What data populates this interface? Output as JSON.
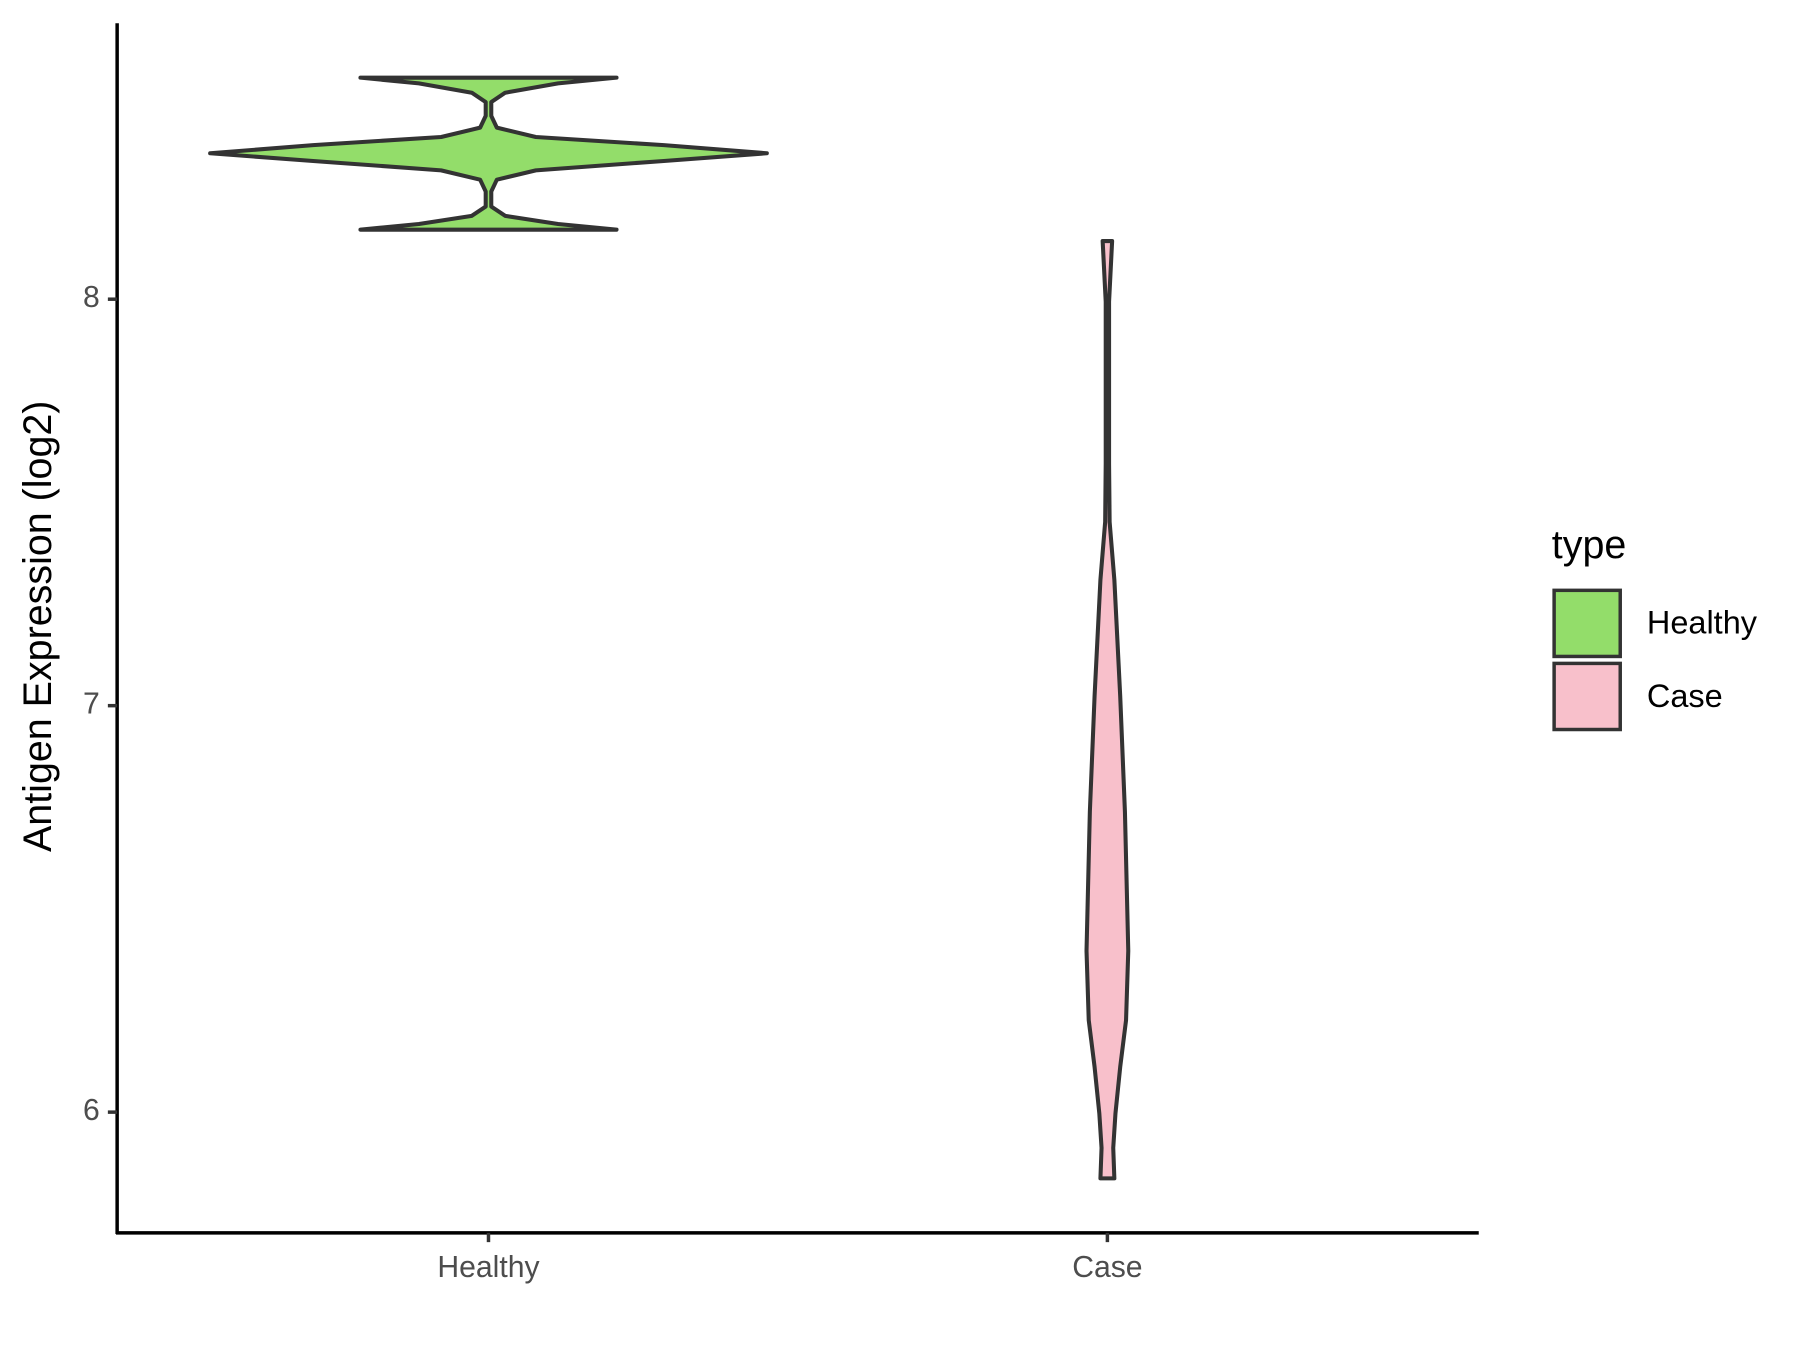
{
  "chart_data": {
    "type": "violin",
    "y_label": "Antigen Expression (log2)",
    "categories": [
      "Healthy",
      "Case"
    ],
    "legend_title": "type",
    "legend_position": "right",
    "ylim": [
      5.703,
      8.679
    ],
    "yticks": [
      6,
      7,
      8
    ],
    "series": [
      {
        "name": "Healthy",
        "color": "#93dd6a",
        "y": [
          8.545,
          8.531,
          8.508,
          8.485,
          8.451,
          8.422,
          8.399,
          8.379,
          8.359,
          8.34,
          8.317,
          8.294,
          8.265,
          8.228,
          8.205,
          8.185,
          8.171
        ],
        "density": [
          0.46,
          0.25,
          0.06,
          0.01,
          0.01,
          0.03,
          0.17,
          0.63,
          1,
          0.63,
          0.17,
          0.03,
          0.01,
          0.01,
          0.06,
          0.25,
          0.46
        ]
      },
      {
        "name": "Case",
        "color": "#f8c0cb",
        "y": [
          8.143,
          7.994,
          7.595,
          7.452,
          7.31,
          7.024,
          6.739,
          6.397,
          6.226,
          6.111,
          5.997,
          5.912,
          5.837
        ],
        "density": [
          0.017,
          0.006,
          0.006,
          0.008,
          0.025,
          0.046,
          0.063,
          0.075,
          0.067,
          0.046,
          0.029,
          0.021,
          0.025
        ]
      }
    ]
  }
}
